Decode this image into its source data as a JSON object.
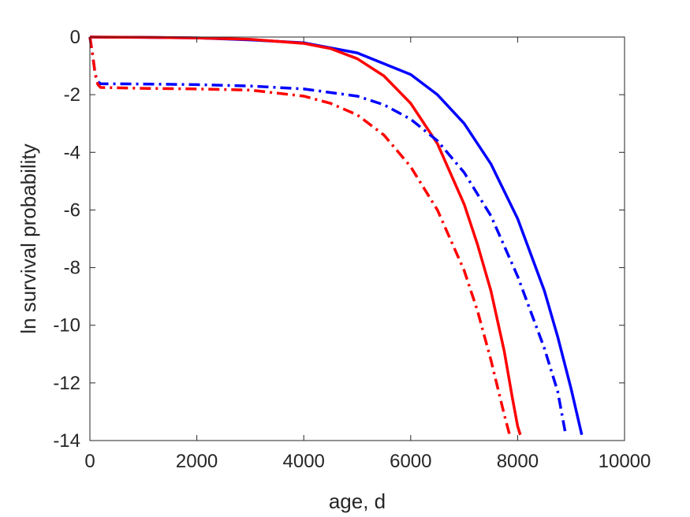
{
  "chart_data": {
    "type": "line",
    "title": "",
    "xlabel": "age, d",
    "ylabel": "ln survival probability",
    "xlim": [
      0,
      10000
    ],
    "ylim": [
      -14,
      0
    ],
    "xticks": [
      0,
      2000,
      4000,
      6000,
      8000,
      10000
    ],
    "yticks": [
      0,
      -2,
      -4,
      -6,
      -8,
      -10,
      -12,
      -14
    ],
    "xtick_labels": [
      "0",
      "2000",
      "4000",
      "6000",
      "8000",
      "10000"
    ],
    "ytick_labels": [
      "0",
      "-2",
      "-4",
      "-6",
      "-8",
      "-10",
      "-12",
      "-14"
    ],
    "grid": false,
    "legend": "none",
    "series": [
      {
        "color": "#0000ff",
        "style": "solid",
        "x": [
          0,
          1000,
          2000,
          3000,
          4000,
          5000,
          6000,
          6500,
          7000,
          7500,
          8000,
          8500,
          8750,
          9000,
          9200
        ],
        "y": [
          0,
          -0.01,
          -0.03,
          -0.1,
          -0.2,
          -0.55,
          -1.3,
          -2.0,
          -3.0,
          -4.4,
          -6.3,
          -8.8,
          -10.4,
          -12.2,
          -13.8
        ]
      },
      {
        "color": "#ff0000",
        "style": "solid",
        "x": [
          0,
          1000,
          2000,
          3000,
          4000,
          4500,
          5000,
          5500,
          6000,
          6500,
          7000,
          7250,
          7500,
          7750,
          7900,
          8000,
          8050
        ],
        "y": [
          0,
          -0.01,
          -0.03,
          -0.08,
          -0.22,
          -0.4,
          -0.75,
          -1.35,
          -2.3,
          -3.7,
          -5.8,
          -7.2,
          -8.8,
          -10.9,
          -12.5,
          -13.5,
          -13.8
        ]
      },
      {
        "color": "#0000ff",
        "style": "dashdot",
        "x": [
          0,
          50,
          100,
          150,
          200,
          1000,
          2000,
          3000,
          4000,
          5000,
          5500,
          6000,
          6500,
          7000,
          7500,
          8000,
          8500,
          8750,
          8900
        ],
        "y": [
          0,
          -0.6,
          -1.3,
          -1.55,
          -1.62,
          -1.63,
          -1.65,
          -1.7,
          -1.8,
          -2.05,
          -2.35,
          -2.85,
          -3.6,
          -4.7,
          -6.2,
          -8.3,
          -10.8,
          -12.3,
          -13.8
        ]
      },
      {
        "color": "#ff0000",
        "style": "dashdot",
        "x": [
          0,
          50,
          100,
          150,
          200,
          1000,
          2000,
          3000,
          4000,
          4500,
          5000,
          5500,
          6000,
          6500,
          7000,
          7250,
          7500,
          7750,
          7850
        ],
        "y": [
          0,
          -0.6,
          -1.3,
          -1.65,
          -1.75,
          -1.78,
          -1.8,
          -1.84,
          -2.05,
          -2.3,
          -2.7,
          -3.4,
          -4.5,
          -6.0,
          -8.1,
          -9.5,
          -11.2,
          -13.1,
          -13.8
        ]
      }
    ]
  }
}
